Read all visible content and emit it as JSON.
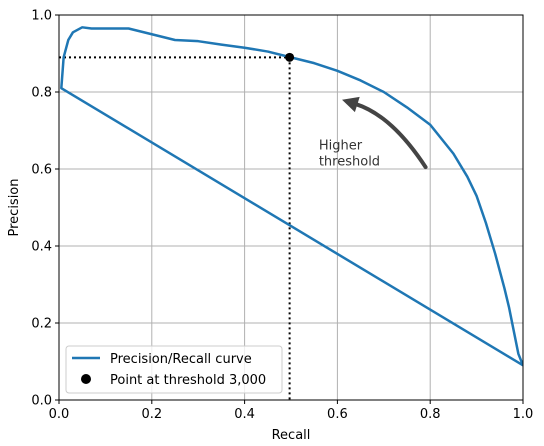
{
  "chart_data": {
    "type": "line",
    "title": "",
    "xlabel": "Recall",
    "ylabel": "Precision",
    "xlim": [
      0,
      1
    ],
    "ylim": [
      0,
      1
    ],
    "grid": true,
    "x_ticks": [
      "0.0",
      "0.2",
      "0.4",
      "0.6",
      "0.8",
      "1.0"
    ],
    "y_ticks": [
      "0.0",
      "0.2",
      "0.4",
      "0.6",
      "0.8",
      "1.0"
    ],
    "legend_position": "lower-left",
    "series": [
      {
        "name": "Precision/Recall curve",
        "color": "#1f77b4",
        "x": [
          1.0,
          1.0,
          0.005,
          0.01,
          0.02,
          0.03,
          0.05,
          0.07,
          0.1,
          0.15,
          0.2,
          0.25,
          0.3,
          0.35,
          0.4,
          0.45,
          0.5,
          0.55,
          0.6,
          0.65,
          0.7,
          0.75,
          0.8,
          0.85,
          0.88,
          0.9,
          0.92,
          0.94,
          0.96,
          0.97,
          0.98,
          0.99,
          1.0
        ],
        "y": [
          0.09,
          0.09,
          0.81,
          0.89,
          0.935,
          0.955,
          0.968,
          0.965,
          0.965,
          0.965,
          0.95,
          0.935,
          0.932,
          0.923,
          0.915,
          0.905,
          0.89,
          0.875,
          0.855,
          0.83,
          0.8,
          0.76,
          0.715,
          0.64,
          0.58,
          0.53,
          0.46,
          0.38,
          0.29,
          0.24,
          0.18,
          0.12,
          0.09
        ]
      }
    ],
    "point": {
      "name": "Point at threshold 3,000",
      "x": 0.497,
      "y": 0.89,
      "color": "#000000"
    },
    "annotation": {
      "text_line1": "Higher",
      "text_line2": "threshold",
      "arrow_from": [
        0.79,
        0.605
      ],
      "arrow_to": [
        0.61,
        0.78
      ],
      "text_at": [
        0.56,
        0.63
      ]
    }
  }
}
